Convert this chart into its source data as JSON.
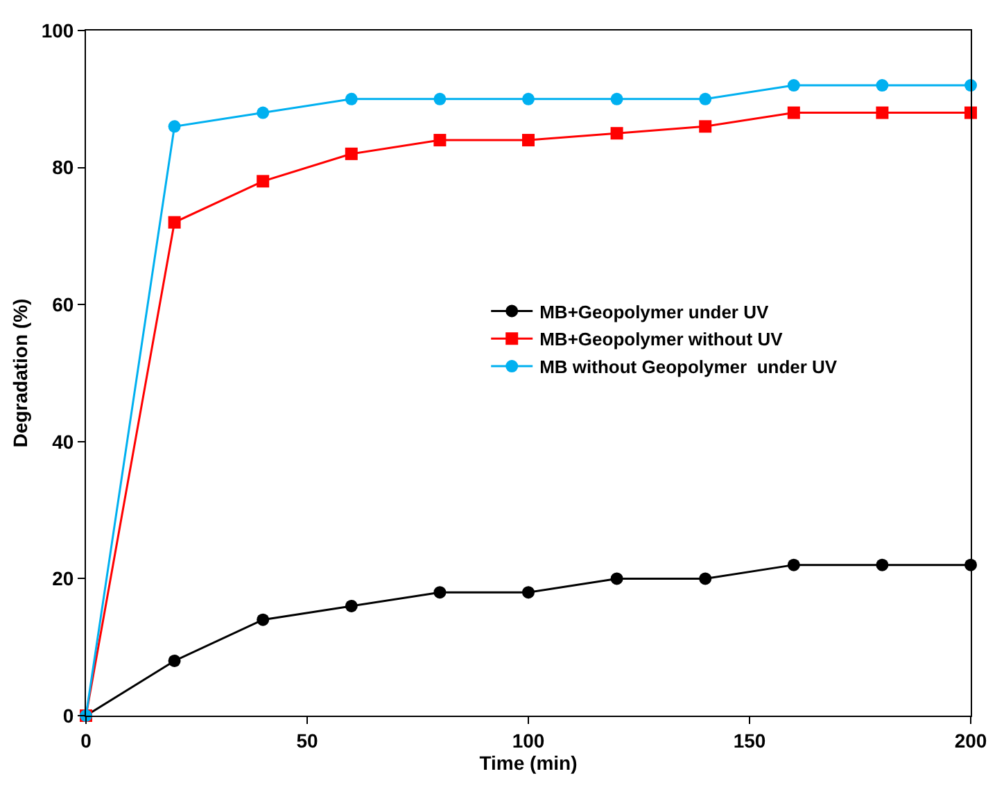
{
  "chart_data": {
    "type": "line",
    "xlabel": "Time (min)",
    "ylabel": "Degradation (%)",
    "x": [
      0,
      20,
      40,
      60,
      80,
      100,
      120,
      140,
      160,
      180,
      200
    ],
    "series": [
      {
        "name": "MB+Geopolymer under UV",
        "color": "#000000",
        "marker": "circle",
        "values": [
          0,
          8,
          14,
          16,
          18,
          18,
          20,
          20,
          22,
          22,
          22
        ]
      },
      {
        "name": "MB+Geopolymer without UV",
        "color": "#ff0000",
        "marker": "square",
        "values": [
          0,
          72,
          78,
          82,
          84,
          84,
          85,
          86,
          88,
          88,
          88
        ]
      },
      {
        "name": "MB without Geopolymer  under UV",
        "color": "#00b0f0",
        "marker": "circle",
        "values": [
          0,
          86,
          88,
          90,
          90,
          90,
          90,
          90,
          92,
          92,
          92
        ]
      }
    ],
    "xlim": [
      0,
      200
    ],
    "xticks": [
      0,
      50,
      100,
      150,
      200
    ],
    "ylim": [
      0,
      100
    ],
    "yticks": [
      0,
      20,
      40,
      60,
      80,
      100
    ],
    "grid": false,
    "legend": "right",
    "line_style": "solid"
  }
}
